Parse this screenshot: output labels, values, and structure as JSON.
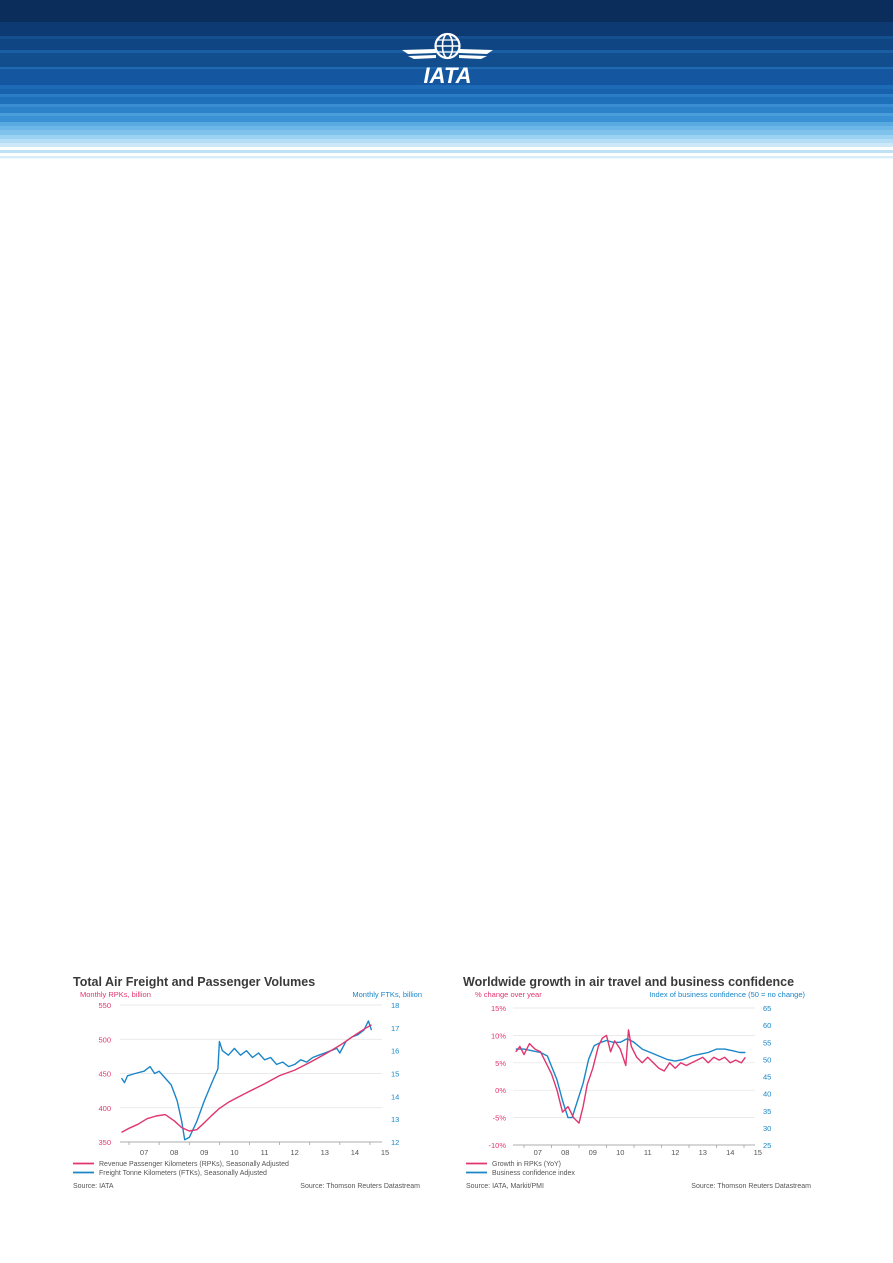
{
  "header": {
    "logo_text": "IATA",
    "colors": {
      "dark": "#0a2d5c",
      "mid": "#1466a8",
      "light": "#5fb3e6"
    }
  },
  "chart_data": [
    {
      "type": "line",
      "title": "Total Air Freight and Passenger Volumes",
      "left_axis_label": "Monthly RPKs, billion",
      "right_axis_label": "Monthly FTKs, billion",
      "left_ylim": [
        350,
        550
      ],
      "left_ticks": [
        "550",
        "500",
        "450",
        "400",
        "350"
      ],
      "right_ylim": [
        12,
        18
      ],
      "right_ticks": [
        "18",
        "17",
        "16",
        "15",
        "14",
        "13",
        "12"
      ],
      "x_ticks": [
        "07",
        "08",
        "09",
        "10",
        "11",
        "12",
        "13",
        "14",
        "15"
      ],
      "xlim": [
        2006.7,
        2015.4
      ],
      "series": [
        {
          "name": "Revenue Passenger Kilometers (RPKs), Seasonally Adjusted",
          "axis": "left",
          "color": "#e0356e",
          "points": [
            [
              2006.75,
              364
            ],
            [
              2007.0,
              370
            ],
            [
              2007.3,
              376
            ],
            [
              2007.6,
              384
            ],
            [
              2007.9,
              388
            ],
            [
              2008.2,
              390
            ],
            [
              2008.5,
              381
            ],
            [
              2008.75,
              371
            ],
            [
              2009.0,
              366
            ],
            [
              2009.25,
              368
            ],
            [
              2009.5,
              378
            ],
            [
              2009.75,
              389
            ],
            [
              2010.0,
              399
            ],
            [
              2010.3,
              408
            ],
            [
              2010.6,
              415
            ],
            [
              2011.0,
              424
            ],
            [
              2011.5,
              435
            ],
            [
              2012.0,
              447
            ],
            [
              2012.5,
              455
            ],
            [
              2013.0,
              466
            ],
            [
              2013.5,
              478
            ],
            [
              2014.0,
              491
            ],
            [
              2014.5,
              506
            ],
            [
              2014.85,
              516
            ],
            [
              2015.05,
              521
            ]
          ]
        },
        {
          "name": "Freight Tonne Kilometers (FTKs), Seasonally Adjusted",
          "axis": "right",
          "color": "#1a86c8",
          "points": [
            [
              2006.75,
              14.8
            ],
            [
              2006.85,
              14.6
            ],
            [
              2006.95,
              14.9
            ],
            [
              2007.2,
              15.0
            ],
            [
              2007.5,
              15.1
            ],
            [
              2007.7,
              15.3
            ],
            [
              2007.85,
              15.0
            ],
            [
              2008.0,
              15.1
            ],
            [
              2008.2,
              14.8
            ],
            [
              2008.4,
              14.5
            ],
            [
              2008.6,
              13.8
            ],
            [
              2008.75,
              12.9
            ],
            [
              2008.85,
              12.1
            ],
            [
              2009.0,
              12.2
            ],
            [
              2009.25,
              12.9
            ],
            [
              2009.5,
              13.8
            ],
            [
              2009.75,
              14.6
            ],
            [
              2009.95,
              15.2
            ],
            [
              2010.0,
              16.4
            ],
            [
              2010.1,
              16.0
            ],
            [
              2010.3,
              15.8
            ],
            [
              2010.5,
              16.1
            ],
            [
              2010.7,
              15.8
            ],
            [
              2010.9,
              16.0
            ],
            [
              2011.1,
              15.7
            ],
            [
              2011.3,
              15.9
            ],
            [
              2011.5,
              15.6
            ],
            [
              2011.7,
              15.7
            ],
            [
              2011.9,
              15.4
            ],
            [
              2012.1,
              15.5
            ],
            [
              2012.3,
              15.3
            ],
            [
              2012.5,
              15.4
            ],
            [
              2012.7,
              15.6
            ],
            [
              2012.9,
              15.5
            ],
            [
              2013.1,
              15.7
            ],
            [
              2013.3,
              15.8
            ],
            [
              2013.5,
              15.9
            ],
            [
              2013.7,
              16.0
            ],
            [
              2013.9,
              16.1
            ],
            [
              2014.0,
              15.9
            ],
            [
              2014.2,
              16.4
            ],
            [
              2014.4,
              16.6
            ],
            [
              2014.6,
              16.7
            ],
            [
              2014.8,
              16.9
            ],
            [
              2014.95,
              17.3
            ],
            [
              2015.05,
              16.9
            ]
          ]
        }
      ],
      "legend": [
        "Revenue Passenger Kilometers (RPKs), Seasonally Adjusted",
        "Freight Tonne Kilometers (FTKs), Seasonally Adjusted"
      ],
      "source_left": "Source: IATA",
      "source_right": "Source: Thomson Reuters Datastream"
    },
    {
      "type": "line",
      "title": "Worldwide growth in air travel and business confidence",
      "left_axis_label": "% change over year",
      "right_axis_label": "Index of business confidence (50 = no change)",
      "left_ylim": [
        -10,
        15
      ],
      "left_ticks": [
        "15%",
        "10%",
        "5%",
        "0%",
        "-5%",
        "-10%"
      ],
      "right_ylim": [
        25,
        65
      ],
      "right_ticks": [
        "65",
        "60",
        "55",
        "50",
        "45",
        "40",
        "35",
        "30",
        "25"
      ],
      "x_ticks": [
        "07",
        "08",
        "09",
        "10",
        "11",
        "12",
        "13",
        "14",
        "15"
      ],
      "xlim": [
        2006.6,
        2015.4
      ],
      "series": [
        {
          "name": "Growth in RPKs (YoY)",
          "axis": "left",
          "color": "#e0356e",
          "points": [
            [
              2006.7,
              7
            ],
            [
              2006.85,
              8
            ],
            [
              2007.0,
              6.5
            ],
            [
              2007.2,
              8.5
            ],
            [
              2007.4,
              7.5
            ],
            [
              2007.6,
              7
            ],
            [
              2007.8,
              5
            ],
            [
              2008.0,
              3
            ],
            [
              2008.2,
              0
            ],
            [
              2008.4,
              -4
            ],
            [
              2008.6,
              -3
            ],
            [
              2008.8,
              -5
            ],
            [
              2009.0,
              -6
            ],
            [
              2009.15,
              -3
            ],
            [
              2009.3,
              1
            ],
            [
              2009.5,
              4
            ],
            [
              2009.7,
              8
            ],
            [
              2009.85,
              9.5
            ],
            [
              2010.0,
              10
            ],
            [
              2010.15,
              7
            ],
            [
              2010.3,
              9
            ],
            [
              2010.5,
              7.5
            ],
            [
              2010.7,
              4.5
            ],
            [
              2010.8,
              11
            ],
            [
              2010.9,
              8
            ],
            [
              2011.1,
              6
            ],
            [
              2011.3,
              5
            ],
            [
              2011.5,
              6
            ],
            [
              2011.7,
              5
            ],
            [
              2011.9,
              4
            ],
            [
              2012.1,
              3.5
            ],
            [
              2012.3,
              5
            ],
            [
              2012.5,
              4
            ],
            [
              2012.7,
              5
            ],
            [
              2012.9,
              4.5
            ],
            [
              2013.1,
              5
            ],
            [
              2013.3,
              5.5
            ],
            [
              2013.5,
              6
            ],
            [
              2013.7,
              5
            ],
            [
              2013.9,
              6
            ],
            [
              2014.1,
              5.5
            ],
            [
              2014.3,
              6
            ],
            [
              2014.5,
              5
            ],
            [
              2014.7,
              5.5
            ],
            [
              2014.9,
              5
            ],
            [
              2015.05,
              6
            ]
          ]
        },
        {
          "name": "Business confidence index",
          "axis": "right",
          "color": "#1a86c8",
          "points": [
            [
              2006.7,
              53
            ],
            [
              2007.0,
              53
            ],
            [
              2007.3,
              52.5
            ],
            [
              2007.6,
              52
            ],
            [
              2007.85,
              51
            ],
            [
              2008.0,
              48
            ],
            [
              2008.2,
              44
            ],
            [
              2008.4,
              38
            ],
            [
              2008.6,
              33
            ],
            [
              2008.75,
              33
            ],
            [
              2008.95,
              38
            ],
            [
              2009.15,
              43
            ],
            [
              2009.35,
              50
            ],
            [
              2009.55,
              54
            ],
            [
              2009.8,
              55
            ],
            [
              2010.0,
              55.5
            ],
            [
              2010.25,
              55
            ],
            [
              2010.5,
              55
            ],
            [
              2010.75,
              56
            ],
            [
              2011.0,
              55
            ],
            [
              2011.3,
              53
            ],
            [
              2011.6,
              52
            ],
            [
              2011.9,
              51
            ],
            [
              2012.2,
              50
            ],
            [
              2012.5,
              49.5
            ],
            [
              2012.8,
              50
            ],
            [
              2013.1,
              51
            ],
            [
              2013.4,
              51.5
            ],
            [
              2013.7,
              52
            ],
            [
              2014.0,
              53
            ],
            [
              2014.3,
              53
            ],
            [
              2014.6,
              52.5
            ],
            [
              2014.85,
              52
            ],
            [
              2015.05,
              52
            ]
          ]
        }
      ],
      "legend": [
        "Growth in RPKs (YoY)",
        "Business confidence index"
      ],
      "source_left": "Source: IATA, Markit/PMI",
      "source_right": "Source: Thomson Reuters Datastream"
    }
  ]
}
